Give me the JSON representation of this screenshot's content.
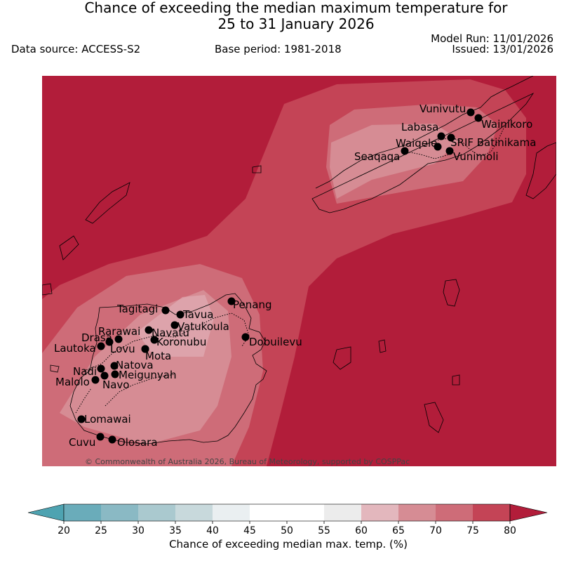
{
  "title": {
    "line1": "Chance of exceeding the median maximum temperature for",
    "line2": "25 to 31 January 2026"
  },
  "header": {
    "data_source": "Data source: ACCESS-S2",
    "base_period": "Base period: 1981-2018",
    "model_run": "Model Run: 11/01/2026",
    "issued": "Issued: 13/01/2026"
  },
  "map": {
    "copyright": "© Commonwealth of Australia 2026, Bureau of Meteorology, supported by COSPPac",
    "colors": {
      "above_75": "#b21d3a",
      "70_75": "#c44456",
      "65_70": "#ce6c78",
      "60_65": "#d68c94"
    },
    "places": [
      {
        "name": "Vunivutu"
      },
      {
        "name": "Wainikoro"
      },
      {
        "name": "Labasa"
      },
      {
        "name": "SRIF Batinikama"
      },
      {
        "name": "Waiqele"
      },
      {
        "name": "Seaqaqa"
      },
      {
        "name": "Vunimoli"
      },
      {
        "name": "Tagitagi"
      },
      {
        "name": "Tavua"
      },
      {
        "name": "Penang"
      },
      {
        "name": "Vatukoula"
      },
      {
        "name": "Rarawai"
      },
      {
        "name": "Navatu"
      },
      {
        "name": "Drasa"
      },
      {
        "name": "Koronubu"
      },
      {
        "name": "Lautoka"
      },
      {
        "name": "Lovu"
      },
      {
        "name": "Dobuilevu"
      },
      {
        "name": "Mota"
      },
      {
        "name": "Natova"
      },
      {
        "name": "Nadi"
      },
      {
        "name": "Meigunyah"
      },
      {
        "name": "Malolo"
      },
      {
        "name": "Navo"
      },
      {
        "name": "Lomawai"
      },
      {
        "name": "Cuvu"
      },
      {
        "name": "Olosara"
      }
    ]
  },
  "colorbar": {
    "label": "Chance of exceeding median max. temp. (%)",
    "ticks": [
      "20",
      "25",
      "30",
      "35",
      "40",
      "45",
      "50",
      "55",
      "60",
      "65",
      "70",
      "75",
      "80"
    ],
    "colors": [
      "#6aacba",
      "#8ab9c4",
      "#aac9cf",
      "#c8d9dc",
      "#eaeff1",
      "#ffffff",
      "#ffffff",
      "#ececec",
      "#e3b7bd",
      "#d68c94",
      "#ce6c78",
      "#c44456"
    ],
    "extend_low_color": "#4ea3b1",
    "extend_high_color": "#b21d3a"
  }
}
